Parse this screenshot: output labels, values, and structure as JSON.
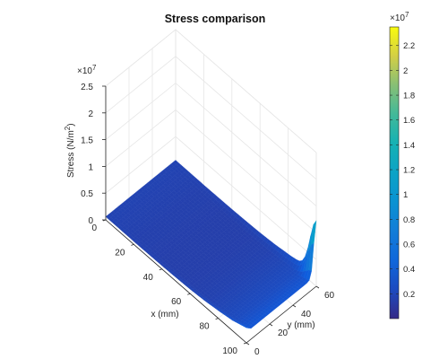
{
  "chart_data": {
    "type": "surface3d",
    "title": "Stress comparison",
    "xlabel": "x (mm)",
    "ylabel": "y (mm)",
    "zlabel": "Stress (N/m",
    "zlabel_sup": "2",
    "zlabel_end": ")",
    "x_ticks": [
      "0",
      "20",
      "40",
      "60",
      "80",
      "100"
    ],
    "y_ticks": [
      "0",
      "20",
      "40",
      "60"
    ],
    "z_ticks": [
      "0",
      "0.5",
      "1",
      "1.5",
      "2",
      "2.5"
    ],
    "z_multiplier": "×10",
    "z_exponent": "7",
    "xlim": [
      0,
      100
    ],
    "ylim": [
      0,
      60
    ],
    "zlim": [
      0,
      25000000
    ],
    "colorbar": {
      "ticks": [
        "0.2",
        "0.4",
        "0.6",
        "0.8",
        "1",
        "1.2",
        "1.4",
        "1.6",
        "1.8",
        "2",
        "2.2"
      ],
      "multiplier": "×10",
      "exponent": "7",
      "colormap": "parula",
      "cmin": 0,
      "cmax": 2.35
    },
    "grid": true,
    "surface_profile": {
      "description_x_mm": [
        0,
        10,
        20,
        30,
        40,
        50,
        60,
        70,
        80,
        90,
        100
      ],
      "stress_along_x_1e7": [
        0.06,
        0.05,
        0.04,
        0.035,
        0.03,
        0.03,
        0.035,
        0.05,
        0.08,
        0.12,
        0.2
      ],
      "edge_peak_1e7": 0.95
    },
    "colors": {
      "surface": "#3b34e0",
      "edge": "#2fb8d8"
    }
  }
}
